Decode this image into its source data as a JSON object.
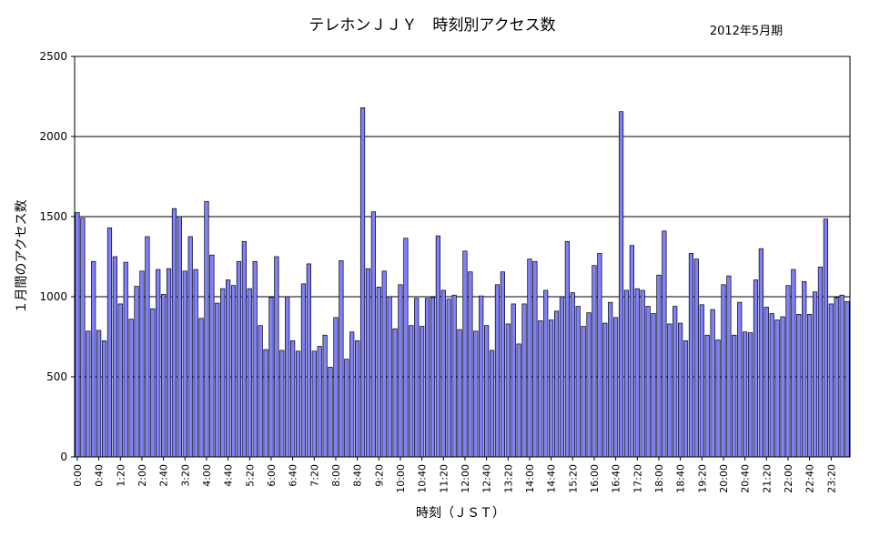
{
  "chart_data": {
    "type": "bar",
    "title": "テレホンＪＪＹ　時刻別アクセス数",
    "subtitle": "2012年5月期",
    "xlabel": "時刻（ＪＳＴ）",
    "ylabel": "１月間のアクセス数",
    "ylim": [
      0,
      2500
    ],
    "yticks": [
      0,
      500,
      1000,
      1500,
      2000,
      2500
    ],
    "grid": true,
    "bar_color": "#8080ff",
    "categories": [
      "0:00",
      "0:10",
      "0:20",
      "0:30",
      "0:40",
      "0:50",
      "1:00",
      "1:10",
      "1:20",
      "1:30",
      "1:40",
      "1:50",
      "2:00",
      "2:10",
      "2:20",
      "2:30",
      "2:40",
      "2:50",
      "3:00",
      "3:10",
      "3:20",
      "3:30",
      "3:40",
      "3:50",
      "4:00",
      "4:10",
      "4:20",
      "4:30",
      "4:40",
      "4:50",
      "5:00",
      "5:10",
      "5:20",
      "5:30",
      "5:40",
      "5:50",
      "6:00",
      "6:10",
      "6:20",
      "6:30",
      "6:40",
      "6:50",
      "7:00",
      "7:10",
      "7:20",
      "7:30",
      "7:40",
      "7:50",
      "8:00",
      "8:10",
      "8:20",
      "8:30",
      "8:40",
      "8:50",
      "9:00",
      "9:10",
      "9:20",
      "9:30",
      "9:40",
      "9:50",
      "10:00",
      "10:10",
      "10:20",
      "10:30",
      "10:40",
      "10:50",
      "11:00",
      "11:10",
      "11:20",
      "11:30",
      "11:40",
      "11:50",
      "12:00",
      "12:10",
      "12:20",
      "12:30",
      "12:40",
      "12:50",
      "13:00",
      "13:10",
      "13:20",
      "13:30",
      "13:40",
      "13:50",
      "14:00",
      "14:10",
      "14:20",
      "14:30",
      "14:40",
      "14:50",
      "15:00",
      "15:10",
      "15:20",
      "15:30",
      "15:40",
      "15:50",
      "16:00",
      "16:10",
      "16:20",
      "16:30",
      "16:40",
      "16:50",
      "17:00",
      "17:10",
      "17:20",
      "17:30",
      "17:40",
      "17:50",
      "18:00",
      "18:10",
      "18:20",
      "18:30",
      "18:40",
      "18:50",
      "19:00",
      "19:10",
      "19:20",
      "19:30",
      "19:40",
      "19:50",
      "20:00",
      "20:10",
      "20:20",
      "20:30",
      "20:40",
      "20:50",
      "21:00",
      "21:10",
      "21:20",
      "21:30",
      "21:40",
      "21:50",
      "22:00",
      "22:10",
      "22:20",
      "22:30",
      "22:40",
      "22:50",
      "23:00",
      "23:10",
      "23:20",
      "23:30",
      "23:40",
      "23:50"
    ],
    "tick_labels": [
      "0:00",
      "0:40",
      "1:20",
      "2:00",
      "2:40",
      "3:20",
      "4:00",
      "4:40",
      "5:20",
      "6:00",
      "6:40",
      "7:20",
      "8:00",
      "8:40",
      "9:20",
      "10:00",
      "10:40",
      "11:20",
      "12:00",
      "12:40",
      "13:20",
      "14:00",
      "14:40",
      "15:20",
      "16:00",
      "16:40",
      "17:20",
      "18:00",
      "18:40",
      "19:20",
      "20:00",
      "20:40",
      "21:20",
      "22:00",
      "22:40",
      "23:20"
    ],
    "values": [
      1525,
      1490,
      785,
      1220,
      790,
      725,
      1430,
      1250,
      955,
      1215,
      860,
      1065,
      1160,
      1375,
      925,
      1170,
      1015,
      1175,
      1550,
      1500,
      1160,
      1375,
      1170,
      865,
      1595,
      1260,
      960,
      1050,
      1105,
      1070,
      1220,
      1345,
      1050,
      1220,
      820,
      670,
      995,
      1250,
      665,
      1000,
      725,
      660,
      1080,
      1205,
      660,
      690,
      760,
      560,
      870,
      1225,
      610,
      780,
      725,
      2180,
      1175,
      1530,
      1060,
      1160,
      1000,
      800,
      1075,
      1365,
      820,
      990,
      815,
      990,
      995,
      1380,
      1040,
      985,
      1010,
      795,
      1285,
      1155,
      785,
      1005,
      820,
      665,
      1075,
      1155,
      830,
      955,
      705,
      955,
      1235,
      1220,
      850,
      1040,
      855,
      910,
      1000,
      1345,
      1025,
      940,
      815,
      900,
      1195,
      1270,
      835,
      965,
      870,
      2155,
      1040,
      1320,
      1050,
      1040,
      940,
      895,
      1135,
      1410,
      830,
      940,
      835,
      725,
      1270,
      1235,
      950,
      760,
      920,
      730,
      1075,
      1130,
      760,
      965,
      780,
      775,
      1105,
      1300,
      935,
      895,
      855,
      875,
      1070,
      1170,
      890,
      1095,
      890,
      1030,
      1185,
      1485,
      955,
      995,
      1010,
      970
    ]
  }
}
